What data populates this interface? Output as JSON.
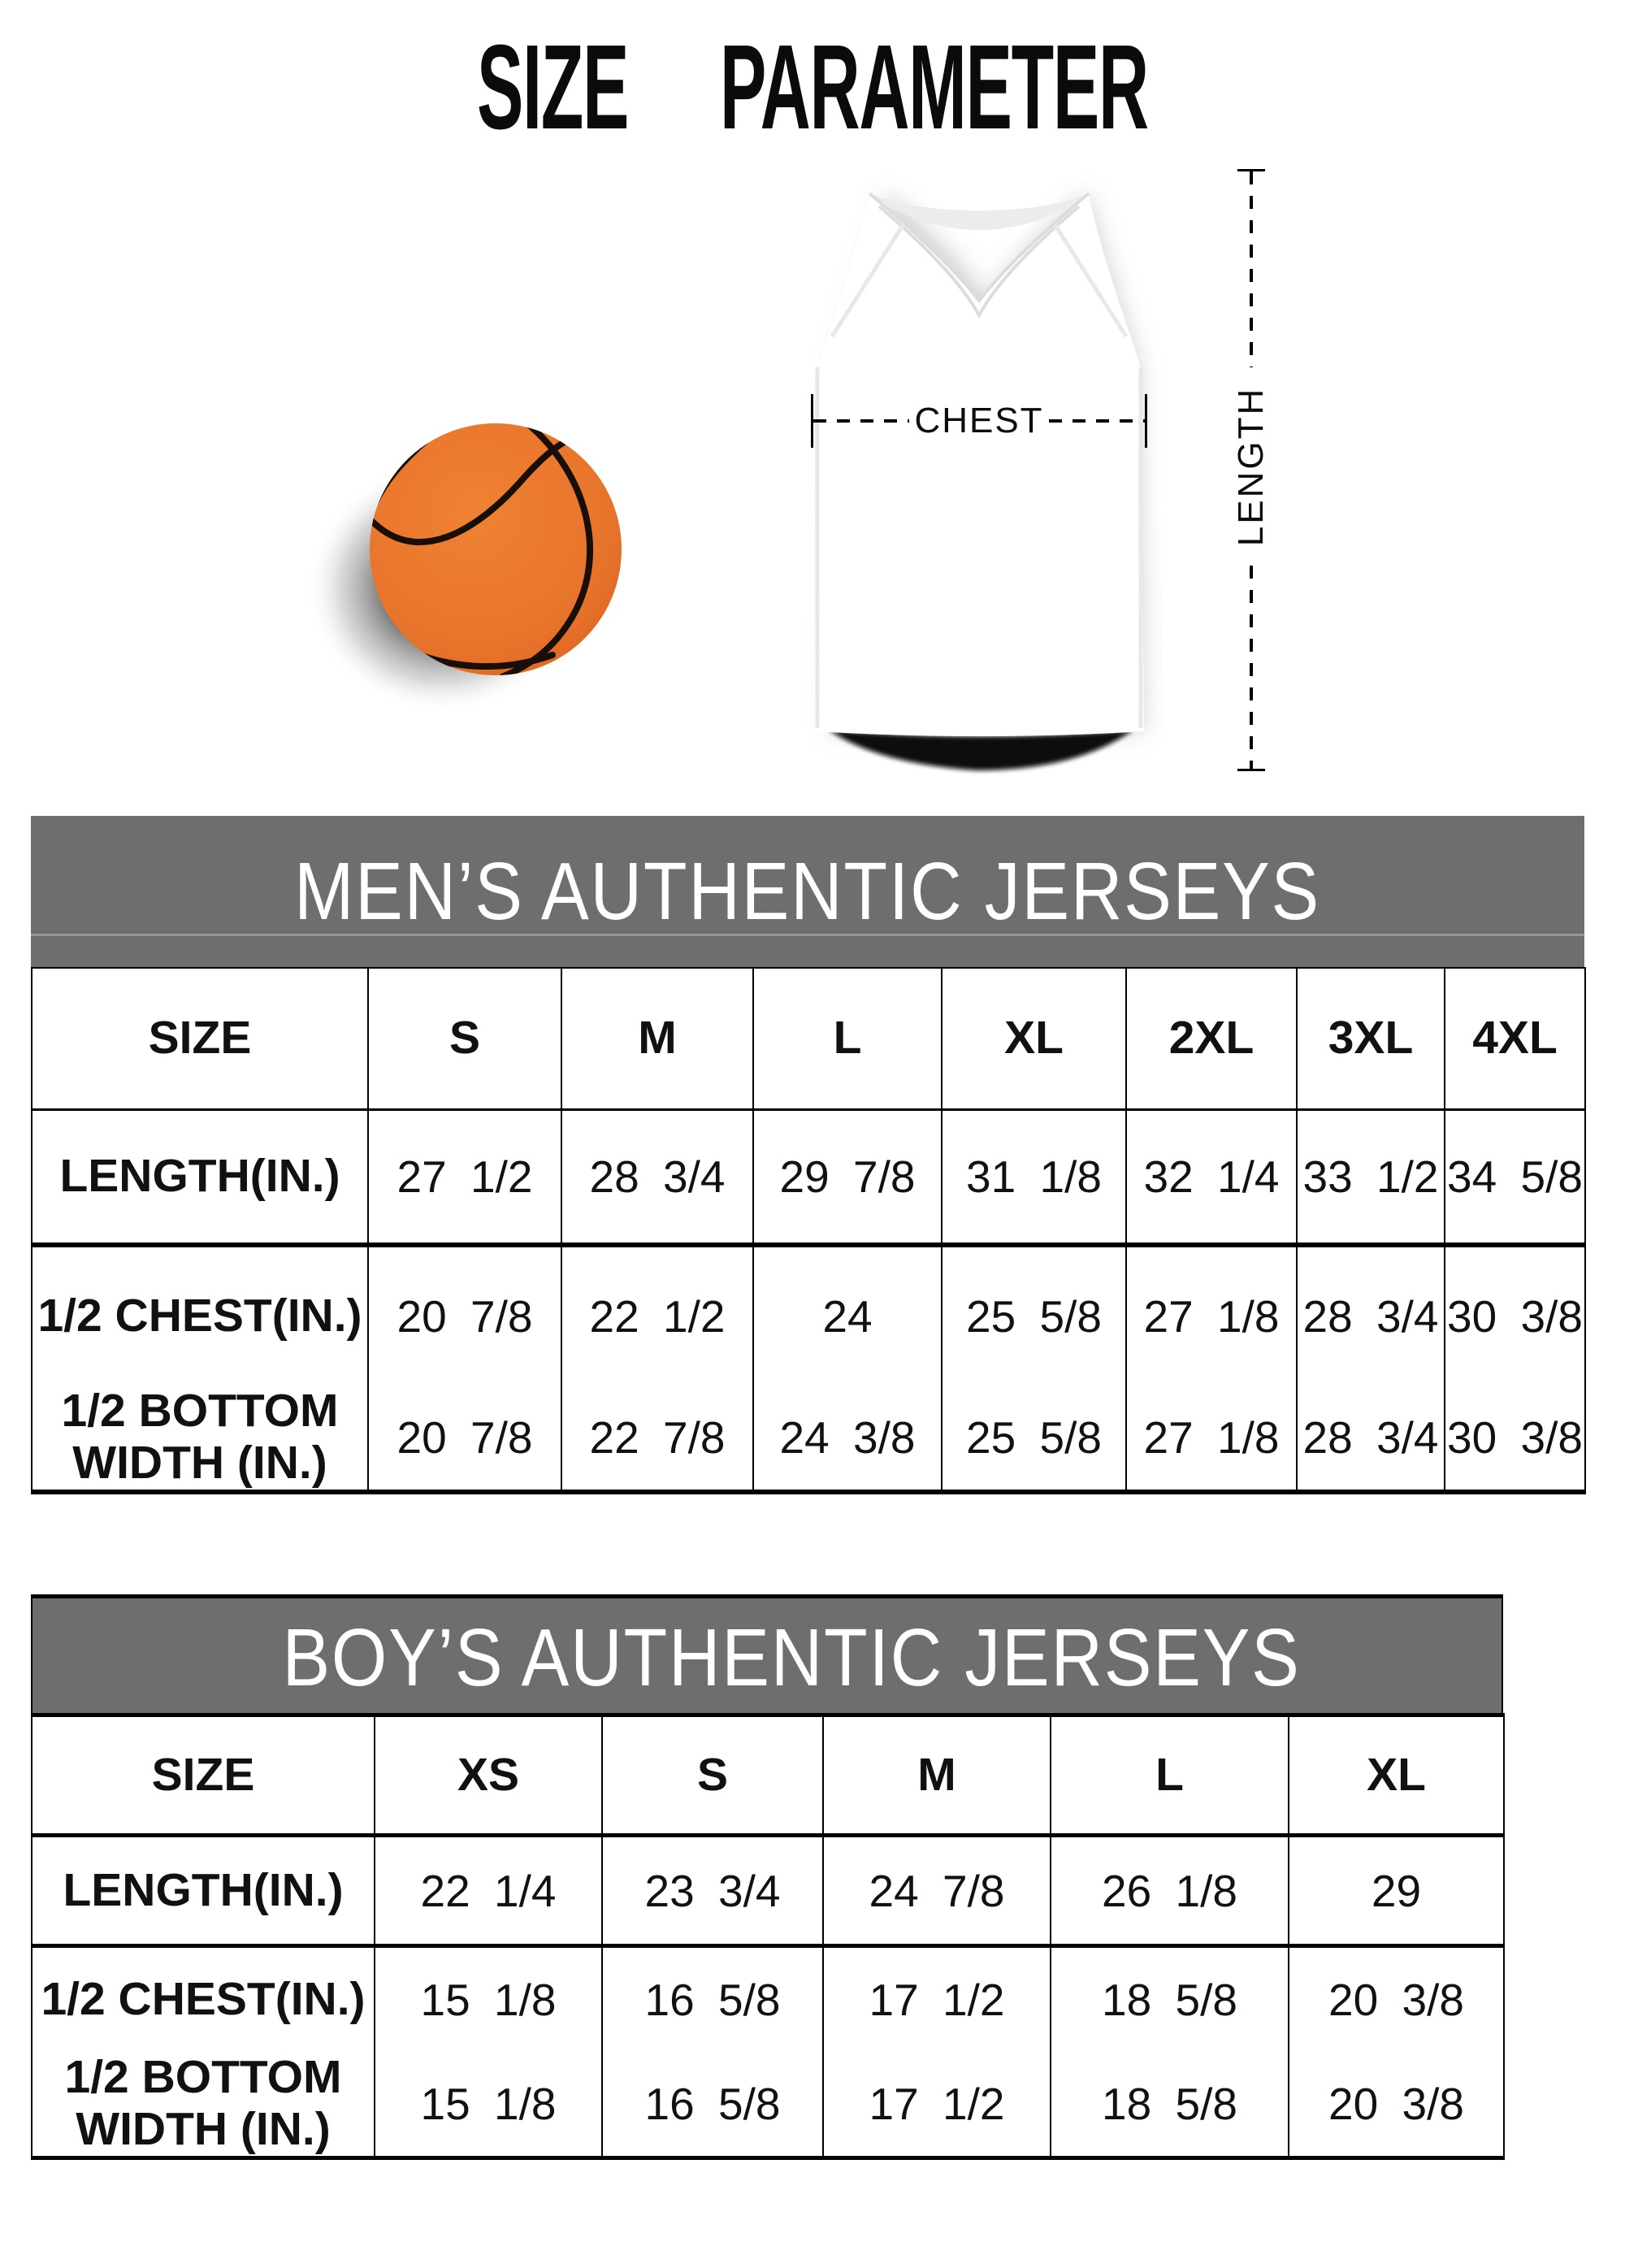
{
  "title": "SIZE PARAMETER",
  "diagram": {
    "chest_label": "CHEST",
    "length_label": "LENGTH",
    "basketball_color": "#e8742c",
    "seam_color": "#181008"
  },
  "colors": {
    "band_gray": "#6e6e6e",
    "band_text": "#ffffff"
  },
  "mens_table": {
    "title": "MEN’S AUTHENTIC JERSEYS",
    "columns": [
      "SIZE",
      "S",
      "M",
      "L",
      "XL",
      "2XL",
      "3XL",
      "4XL"
    ],
    "rows": [
      {
        "label": "LENGTH(IN.)",
        "values": [
          "27 1/2",
          "28 3/4",
          "29 7/8",
          "31 1/8",
          "32 1/4",
          "33 1/2",
          "34 5/8"
        ]
      },
      {
        "label": "1/2 CHEST(IN.)",
        "values": [
          "20 7/8",
          "22 1/2",
          "24",
          "25 5/8",
          "27 1/8",
          "28 3/4",
          "30 3/8"
        ]
      },
      {
        "label": "1/2 BOTTOM\nWIDTH (IN.)",
        "values": [
          "20 7/8",
          "22 7/8",
          "24 3/8",
          "25 5/8",
          "27 1/8",
          "28 3/4",
          "30 3/8"
        ]
      }
    ]
  },
  "boys_table": {
    "title": "BOY’S AUTHENTIC JERSEYS",
    "columns": [
      "SIZE",
      "XS",
      "S",
      "M",
      "L",
      "XL"
    ],
    "rows": [
      {
        "label": "LENGTH(IN.)",
        "values": [
          "22 1/4",
          "23 3/4",
          "24 7/8",
          "26 1/8",
          "29"
        ]
      },
      {
        "label": "1/2 CHEST(IN.)",
        "values": [
          "15 1/8",
          "16 5/8",
          "17 1/2",
          "18 5/8",
          "20 3/8"
        ]
      },
      {
        "label": "1/2 BOTTOM\nWIDTH (IN.)",
        "values": [
          "15 1/8",
          "16 5/8",
          "17 1/2",
          "18 5/8",
          "20 3/8"
        ]
      }
    ]
  }
}
